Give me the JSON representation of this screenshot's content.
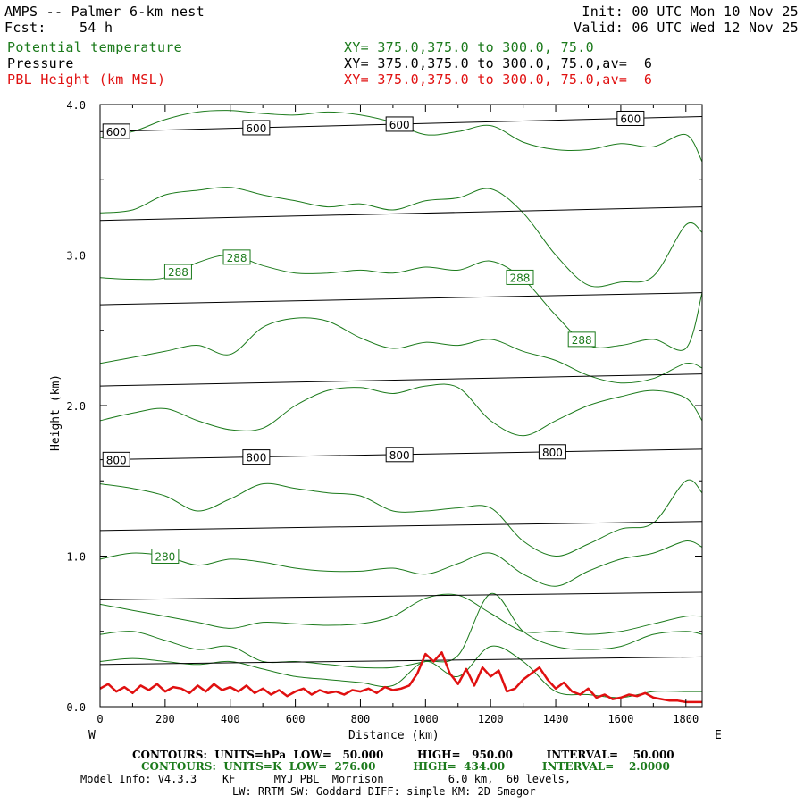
{
  "header": {
    "title_line1": "AMPS -- Palmer 6-km nest",
    "title_line2": "Fcst:    54 h",
    "init": "Init: 00 UTC Mon 10 Nov 25",
    "valid": "Valid: 06 UTC Wed 12 Nov 25",
    "field1_name": "Potential temperature",
    "field1_xy": "XY= 375.0,375.0 to 300.0, 75.0",
    "field2_name": "Pressure",
    "field2_xy": "XY= 375.0,375.0 to 300.0, 75.0,av=  6",
    "field3_name": "PBL Height (km MSL)",
    "field3_xy": "XY= 375.0,375.0 to 300.0, 75.0,av=  6"
  },
  "footer": {
    "pressure_contours": "CONTOURS:  UNITS=hPa  LOW=   50.000         HIGH=   950.00         INTERVAL=    50.000",
    "theta_contours": "CONTOURS:  UNITS=K  LOW=  276.00          HIGH=  434.00          INTERVAL=    2.0000",
    "model_info": "Model Info: V4.3.3    KF      MYJ PBL  Morrison          6.0 km,  60 levels,",
    "model_info2": "LW: RRTM SW: Goddard DIFF: simple KM: 2D Smagor"
  },
  "chart_data": {
    "type": "line",
    "xlabel": "Distance (km)",
    "ylabel": "Height (km)",
    "xlim": [
      0,
      1850
    ],
    "ylim": [
      0,
      4.0
    ],
    "x_ticks": [
      0,
      200,
      400,
      600,
      800,
      1000,
      1200,
      1400,
      1600,
      1800
    ],
    "y_ticks": [
      0.0,
      1.0,
      2.0,
      3.0,
      4.0
    ],
    "y_tick_labels": [
      "0.0",
      "1.0",
      "2.0",
      "3.0",
      "4.0"
    ],
    "x_end_labels": {
      "left": "W",
      "right": "E"
    },
    "colors": {
      "theta": "#1b7a1b",
      "pressure": "#000000",
      "pbl": "#e01010"
    },
    "pressure_contours": [
      {
        "label": "600",
        "x": [
          0,
          1850
        ],
        "y": [
          3.82,
          3.92
        ],
        "label_positions": [
          50,
          480,
          920,
          1630
        ]
      },
      {
        "label": "",
        "x": [
          0,
          1850
        ],
        "y": [
          3.23,
          3.32
        ],
        "label_positions": []
      },
      {
        "label": "",
        "x": [
          0,
          1850
        ],
        "y": [
          2.67,
          2.75
        ],
        "label_positions": []
      },
      {
        "label": "",
        "x": [
          0,
          1850
        ],
        "y": [
          2.13,
          2.21
        ],
        "label_positions": []
      },
      {
        "label": "800",
        "x": [
          0,
          1850
        ],
        "y": [
          1.64,
          1.71
        ],
        "label_positions": [
          50,
          480,
          920,
          1390
        ]
      },
      {
        "label": "",
        "x": [
          0,
          1850
        ],
        "y": [
          1.17,
          1.23
        ],
        "label_positions": []
      },
      {
        "label": "",
        "x": [
          0,
          1850
        ],
        "y": [
          0.71,
          0.76
        ],
        "label_positions": []
      },
      {
        "label": "",
        "x": [
          0,
          1850
        ],
        "y": [
          0.28,
          0.33
        ],
        "label_positions": []
      }
    ],
    "theta_contours": [
      {
        "label": "",
        "x": [
          0,
          100,
          200,
          300,
          400,
          500,
          600,
          700,
          800,
          900,
          1000,
          1100,
          1200,
          1300,
          1400,
          1500,
          1600,
          1700,
          1800,
          1850
        ],
        "y": [
          3.78,
          3.82,
          3.9,
          3.95,
          3.96,
          3.94,
          3.93,
          3.95,
          3.93,
          3.88,
          3.8,
          3.82,
          3.86,
          3.75,
          3.7,
          3.7,
          3.74,
          3.72,
          3.8,
          3.62
        ]
      },
      {
        "label": "",
        "x": [
          0,
          100,
          200,
          300,
          400,
          500,
          600,
          700,
          800,
          900,
          1000,
          1100,
          1200,
          1300,
          1400,
          1500,
          1600,
          1700,
          1800,
          1850
        ],
        "y": [
          3.28,
          3.3,
          3.4,
          3.43,
          3.45,
          3.4,
          3.36,
          3.32,
          3.34,
          3.3,
          3.36,
          3.38,
          3.44,
          3.28,
          3.0,
          2.8,
          2.82,
          2.86,
          3.2,
          3.15
        ]
      },
      {
        "label": "288",
        "x": [
          0,
          100,
          200,
          300,
          400,
          500,
          600,
          700,
          800,
          900,
          1000,
          1100,
          1200,
          1300,
          1400,
          1500,
          1600,
          1700,
          1800,
          1850
        ],
        "y": [
          2.85,
          2.84,
          2.85,
          2.95,
          3.0,
          2.93,
          2.88,
          2.88,
          2.9,
          2.88,
          2.92,
          2.9,
          2.96,
          2.84,
          2.6,
          2.4,
          2.4,
          2.44,
          2.38,
          2.75
        ],
        "label_positions": [
          240,
          420,
          1290,
          1480
        ]
      },
      {
        "label": "",
        "x": [
          0,
          100,
          200,
          300,
          400,
          500,
          600,
          700,
          800,
          900,
          1000,
          1100,
          1200,
          1300,
          1400,
          1500,
          1600,
          1700,
          1800,
          1850
        ],
        "y": [
          2.28,
          2.32,
          2.36,
          2.4,
          2.34,
          2.52,
          2.58,
          2.56,
          2.45,
          2.38,
          2.42,
          2.4,
          2.44,
          2.36,
          2.3,
          2.2,
          2.15,
          2.18,
          2.28,
          2.25
        ]
      },
      {
        "label": "",
        "x": [
          0,
          100,
          200,
          300,
          400,
          500,
          600,
          700,
          800,
          900,
          1000,
          1100,
          1200,
          1300,
          1400,
          1500,
          1600,
          1700,
          1800,
          1850
        ],
        "y": [
          1.9,
          1.95,
          1.98,
          1.9,
          1.84,
          1.85,
          2.0,
          2.1,
          2.12,
          2.08,
          2.13,
          2.12,
          1.9,
          1.8,
          1.9,
          2.0,
          2.06,
          2.1,
          2.05,
          1.9
        ]
      },
      {
        "label": "",
        "x": [
          0,
          100,
          200,
          300,
          400,
          500,
          600,
          700,
          800,
          900,
          1000,
          1100,
          1200,
          1300,
          1400,
          1500,
          1600,
          1700,
          1800,
          1850
        ],
        "y": [
          1.48,
          1.45,
          1.4,
          1.3,
          1.38,
          1.48,
          1.45,
          1.42,
          1.4,
          1.3,
          1.3,
          1.32,
          1.32,
          1.1,
          1.0,
          1.08,
          1.18,
          1.22,
          1.5,
          1.42
        ]
      },
      {
        "label": "280",
        "x": [
          0,
          100,
          200,
          300,
          400,
          500,
          600,
          700,
          800,
          900,
          1000,
          1100,
          1200,
          1300,
          1400,
          1500,
          1600,
          1700,
          1800,
          1850
        ],
        "y": [
          0.98,
          1.02,
          1.0,
          0.94,
          0.98,
          0.96,
          0.92,
          0.9,
          0.9,
          0.92,
          0.88,
          0.95,
          1.02,
          0.88,
          0.8,
          0.9,
          0.98,
          1.02,
          1.1,
          1.06
        ],
        "label_positions": [
          200
        ]
      },
      {
        "label": "",
        "x": [
          0,
          100,
          200,
          300,
          400,
          500,
          600,
          700,
          800,
          900,
          1000,
          1100,
          1200,
          1300,
          1400,
          1500,
          1600,
          1700,
          1800,
          1850
        ],
        "y": [
          0.68,
          0.64,
          0.6,
          0.56,
          0.52,
          0.56,
          0.55,
          0.54,
          0.55,
          0.6,
          0.72,
          0.74,
          0.62,
          0.5,
          0.5,
          0.48,
          0.5,
          0.55,
          0.6,
          0.6
        ]
      },
      {
        "label": "",
        "x": [
          0,
          100,
          200,
          300,
          400,
          500,
          600,
          700,
          800,
          900,
          1000,
          1100,
          1200,
          1300,
          1400,
          1500,
          1600,
          1700,
          1800,
          1850
        ],
        "y": [
          0.48,
          0.5,
          0.44,
          0.38,
          0.4,
          0.3,
          0.3,
          0.28,
          0.26,
          0.26,
          0.3,
          0.34,
          0.75,
          0.5,
          0.4,
          0.38,
          0.4,
          0.48,
          0.5,
          0.48
        ]
      },
      {
        "label": "",
        "x": [
          0,
          100,
          200,
          300,
          400,
          500,
          600,
          700,
          800,
          900,
          1000,
          1100,
          1200,
          1300,
          1400,
          1500,
          1600,
          1700,
          1800,
          1850
        ],
        "y": [
          0.3,
          0.32,
          0.3,
          0.28,
          0.3,
          0.25,
          0.2,
          0.18,
          0.16,
          0.14,
          0.3,
          0.2,
          0.4,
          0.3,
          0.1,
          0.08,
          0.06,
          0.1,
          0.1,
          0.1
        ]
      }
    ],
    "pbl_height": {
      "x": [
        0,
        25,
        50,
        75,
        100,
        125,
        150,
        175,
        200,
        225,
        250,
        275,
        300,
        325,
        350,
        375,
        400,
        425,
        450,
        475,
        500,
        525,
        550,
        575,
        600,
        625,
        650,
        675,
        700,
        725,
        750,
        775,
        800,
        825,
        850,
        875,
        900,
        925,
        950,
        975,
        1000,
        1025,
        1050,
        1075,
        1100,
        1125,
        1150,
        1175,
        1200,
        1225,
        1250,
        1275,
        1300,
        1325,
        1350,
        1375,
        1400,
        1425,
        1450,
        1475,
        1500,
        1525,
        1550,
        1575,
        1600,
        1625,
        1650,
        1675,
        1700,
        1725,
        1750,
        1775,
        1800,
        1825,
        1850
      ],
      "y": [
        0.12,
        0.15,
        0.1,
        0.13,
        0.09,
        0.14,
        0.11,
        0.15,
        0.1,
        0.13,
        0.12,
        0.09,
        0.14,
        0.1,
        0.15,
        0.11,
        0.13,
        0.1,
        0.14,
        0.09,
        0.12,
        0.08,
        0.11,
        0.07,
        0.1,
        0.12,
        0.08,
        0.11,
        0.09,
        0.1,
        0.08,
        0.11,
        0.1,
        0.12,
        0.09,
        0.13,
        0.11,
        0.12,
        0.14,
        0.22,
        0.35,
        0.3,
        0.36,
        0.22,
        0.15,
        0.25,
        0.14,
        0.26,
        0.2,
        0.24,
        0.1,
        0.12,
        0.18,
        0.22,
        0.26,
        0.18,
        0.12,
        0.16,
        0.1,
        0.08,
        0.12,
        0.06,
        0.08,
        0.05,
        0.06,
        0.08,
        0.07,
        0.09,
        0.06,
        0.05,
        0.04,
        0.04,
        0.03,
        0.03,
        0.03
      ]
    }
  }
}
